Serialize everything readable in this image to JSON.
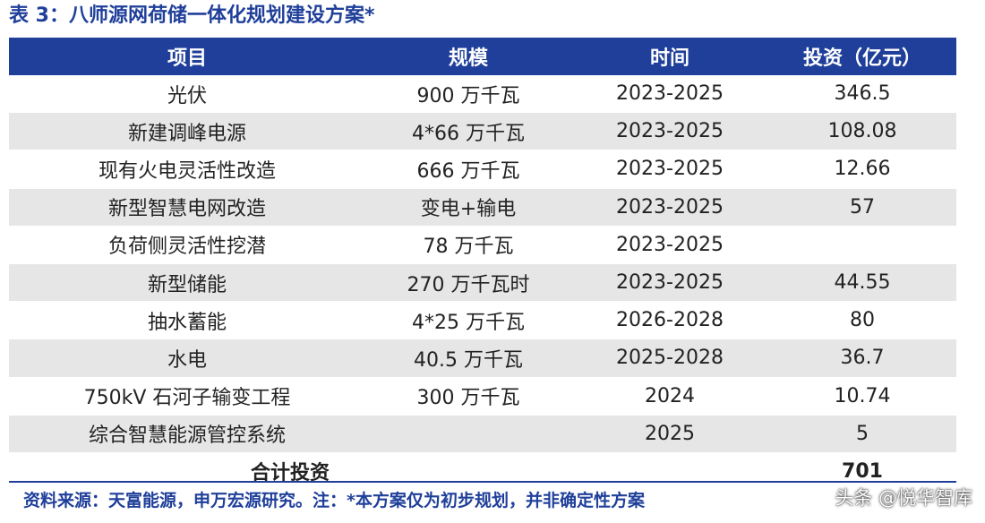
{
  "title": "表 3：八师源网荷储一体化规划建设方案*",
  "table": {
    "headers": [
      "项目",
      "规模",
      "时间",
      "投资（亿元）"
    ],
    "rows": [
      [
        "光伏",
        "900 万千瓦",
        "2023-2025",
        "346.5"
      ],
      [
        "新建调峰电源",
        "4*66 万千瓦",
        "2023-2025",
        "108.08"
      ],
      [
        "现有火电灵活性改造",
        "666 万千瓦",
        "2023-2025",
        "12.66"
      ],
      [
        "新型智慧电网改造",
        "变电+输电",
        "2023-2025",
        "57"
      ],
      [
        "负荷侧灵活性挖潜",
        "78 万千瓦",
        "2023-2025",
        ""
      ],
      [
        "新型储能",
        "270 万千瓦时",
        "2023-2025",
        "44.55"
      ],
      [
        "抽水蓄能",
        "4*25 万千瓦",
        "2026-2028",
        "80"
      ],
      [
        "水电",
        "40.5 万千瓦",
        "2025-2028",
        "36.7"
      ],
      [
        "750kV 石河子输变工程",
        "300 万千瓦",
        "2024",
        "10.74"
      ],
      [
        "综合智慧能源管控系统",
        "",
        "2025",
        "5"
      ]
    ],
    "total": {
      "label": "合计投资",
      "value": "701"
    }
  },
  "source": "资料来源：天富能源，申万宏源研究。注：*本方案仅为初步规划，并非确定性方案",
  "watermark": "头条 @悦华智库",
  "colors": {
    "header_bg": "#1f3f9a",
    "stripe": "#e6e6e6",
    "accent_text": "#1f3f9a"
  }
}
